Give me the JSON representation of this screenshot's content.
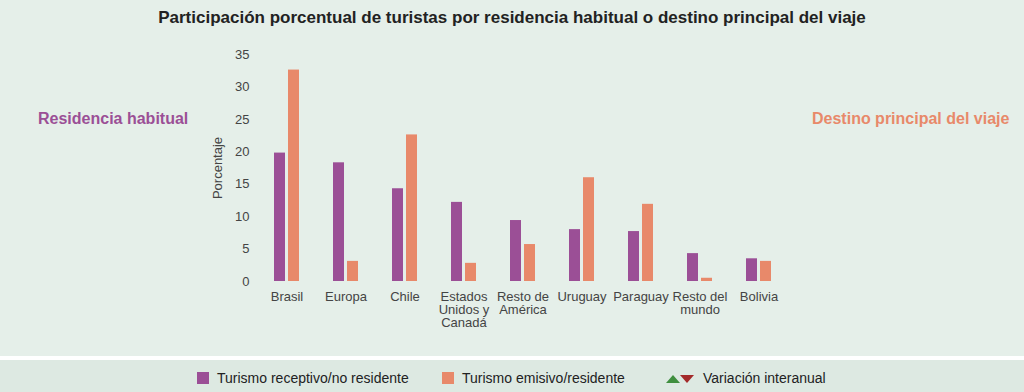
{
  "chart_data": {
    "type": "bar",
    "title": "Participación porcentual de turistas por residencia habitual o destino principal del viaje",
    "y_label": "Porcentaje",
    "categories": [
      "Brasil",
      "Europa",
      "Chile",
      "Estados\nUnidos y\nCanadá",
      "Resto de\nAmérica",
      "Uruguay",
      "Paraguay",
      "Resto del\nmundo",
      "Bolivia"
    ],
    "series": [
      {
        "name": "Turismo receptivo/no residente",
        "color": "#9b4f96",
        "values": [
          19.8,
          18.3,
          14.3,
          12.2,
          9.4,
          8.0,
          7.7,
          4.3,
          3.5
        ]
      },
      {
        "name": "Turismo emisivo/residente",
        "color": "#e8896a",
        "values": [
          32.6,
          3.1,
          22.6,
          2.8,
          5.7,
          16.0,
          11.9,
          0.5,
          3.1
        ]
      }
    ],
    "annotations": [
      "Residencia habitual",
      "Destino principal del viaje"
    ],
    "legend_extra": "Variación interanual",
    "ylim": [
      0,
      35
    ],
    "yticks": [
      0,
      5,
      10,
      15,
      20,
      25,
      30,
      35
    ],
    "grid": false,
    "legend": "bottom"
  }
}
